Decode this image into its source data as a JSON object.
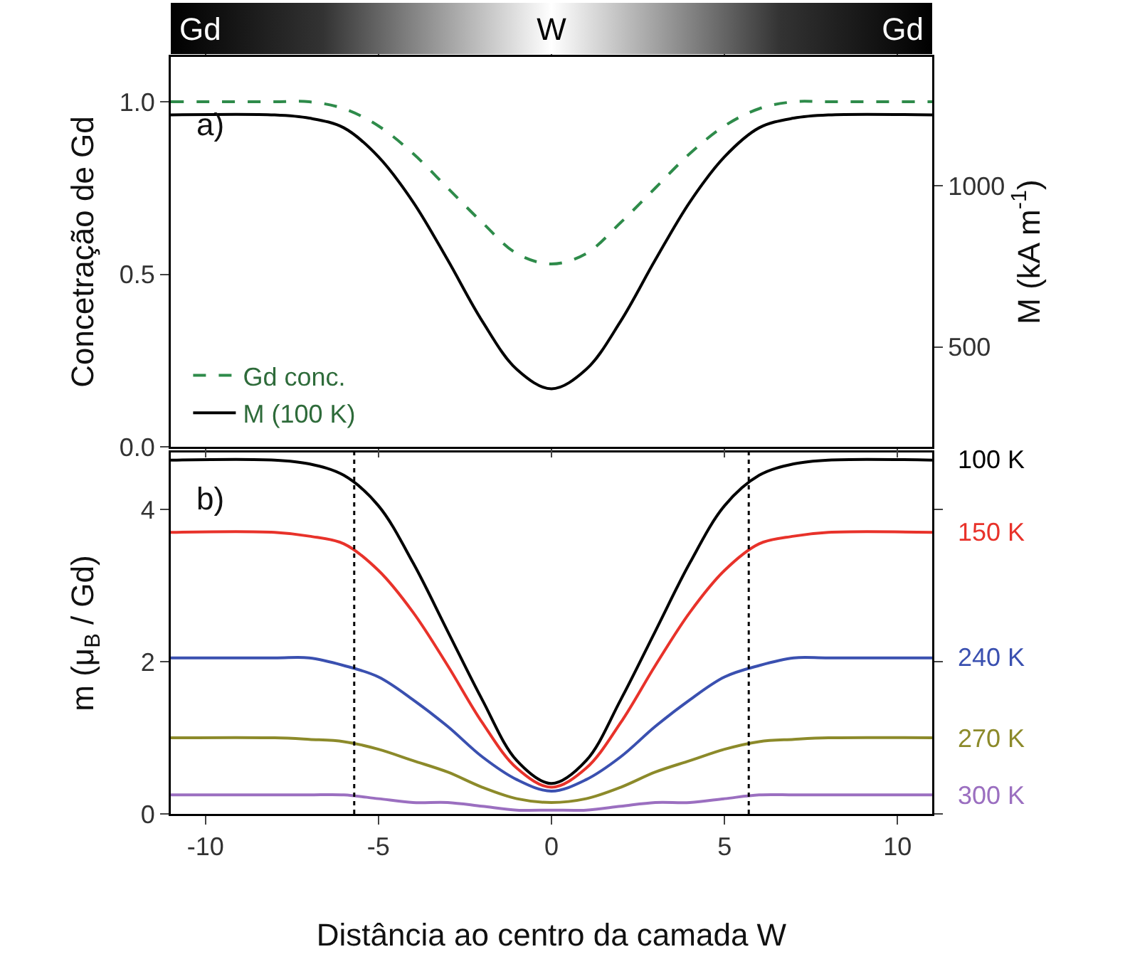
{
  "chart_data": [
    {
      "type": "line",
      "ylabel": "Concetração de Gd",
      "y2label": "M (kA m$^{-1}$)",
      "annotations": [
        "Gd",
        "W",
        "Gd",
        "a)"
      ],
      "x": [
        -11,
        -8,
        -7,
        -6,
        -5,
        -4,
        -3,
        -2,
        -1,
        0,
        1,
        2,
        3,
        4,
        5,
        6,
        7,
        8,
        11
      ],
      "xlim": [
        -11,
        11
      ],
      "xticks": [
        -10,
        -5,
        0,
        5,
        10
      ],
      "ylim": [
        0,
        1.13
      ],
      "yticks": [
        {
          "value": 0,
          "label": "0.0"
        },
        0.5,
        {
          "value": 1,
          "label": "1.0"
        }
      ],
      "y2lim": [
        190,
        1400
      ],
      "y2ticks": [
        500,
        1000
      ],
      "tick_labels": "y",
      "grid": false,
      "legend": "bottom left",
      "series": [
        {
          "name": "Gd conc.",
          "color": "#2e8b4a",
          "line_style": "dashed",
          "values": [
            1.0,
            1.0,
            1.0,
            0.98,
            0.93,
            0.85,
            0.75,
            0.65,
            0.56,
            0.53,
            0.56,
            0.65,
            0.75,
            0.85,
            0.93,
            0.98,
            1.0,
            1.0,
            1.0
          ]
        },
        {
          "name": "M (100 K)",
          "color": "#000000",
          "axis": "y2",
          "values": [
            1220,
            1220,
            1210,
            1180,
            1090,
            950,
            770,
            580,
            430,
            370,
            430,
            580,
            770,
            950,
            1090,
            1180,
            1210,
            1220,
            1220
          ]
        }
      ]
    },
    {
      "type": "line",
      "xlabel": "Distância ao centro da camada W",
      "ylabel": "m (μ$_{B}$ / Gd)",
      "annotations": [
        "b)"
      ],
      "x": [
        -11,
        -8,
        -7,
        -6,
        -5,
        -4,
        -3,
        -2,
        -1,
        0,
        1,
        2,
        3,
        4,
        5,
        6,
        7,
        8,
        11
      ],
      "xlim": [
        -11,
        11
      ],
      "xticks": [
        -10,
        -5,
        0,
        5,
        10
      ],
      "ylim": [
        0,
        4.75
      ],
      "yticks": [
        0,
        2,
        4
      ],
      "grid": false,
      "legend": false,
      "ref_lines": [
        {
          "axis": "x",
          "value": -5.7,
          "color": "#000000",
          "line_style": "dotted"
        },
        {
          "axis": "x",
          "value": 5.7,
          "color": "#000000",
          "line_style": "dotted"
        }
      ],
      "series": [
        {
          "name": "100 K",
          "color": "#000000",
          "values": [
            4.65,
            4.65,
            4.6,
            4.45,
            4.05,
            3.3,
            2.4,
            1.5,
            0.7,
            0.4,
            0.7,
            1.5,
            2.4,
            3.3,
            4.05,
            4.45,
            4.6,
            4.65,
            4.65
          ]
        },
        {
          "name": "150 K",
          "color": "#e8322a",
          "values": [
            3.7,
            3.7,
            3.65,
            3.55,
            3.2,
            2.65,
            1.95,
            1.2,
            0.6,
            0.35,
            0.6,
            1.2,
            1.95,
            2.65,
            3.2,
            3.55,
            3.65,
            3.7,
            3.7
          ]
        },
        {
          "name": "240 K",
          "color": "#3a50b0",
          "values": [
            2.05,
            2.05,
            2.05,
            1.95,
            1.8,
            1.5,
            1.15,
            0.75,
            0.45,
            0.3,
            0.45,
            0.75,
            1.15,
            1.5,
            1.8,
            1.95,
            2.05,
            2.05,
            2.05
          ]
        },
        {
          "name": "270 K",
          "color": "#8c8a2a",
          "values": [
            1.0,
            1.0,
            0.98,
            0.95,
            0.85,
            0.7,
            0.55,
            0.35,
            0.2,
            0.15,
            0.2,
            0.35,
            0.55,
            0.7,
            0.85,
            0.95,
            0.98,
            1.0,
            1.0
          ]
        },
        {
          "name": "300 K",
          "color": "#9b6fc0",
          "values": [
            0.25,
            0.25,
            0.25,
            0.25,
            0.2,
            0.15,
            0.15,
            0.1,
            0.05,
            0.05,
            0.05,
            0.1,
            0.15,
            0.15,
            0.2,
            0.25,
            0.25,
            0.25,
            0.25
          ]
        }
      ]
    }
  ]
}
